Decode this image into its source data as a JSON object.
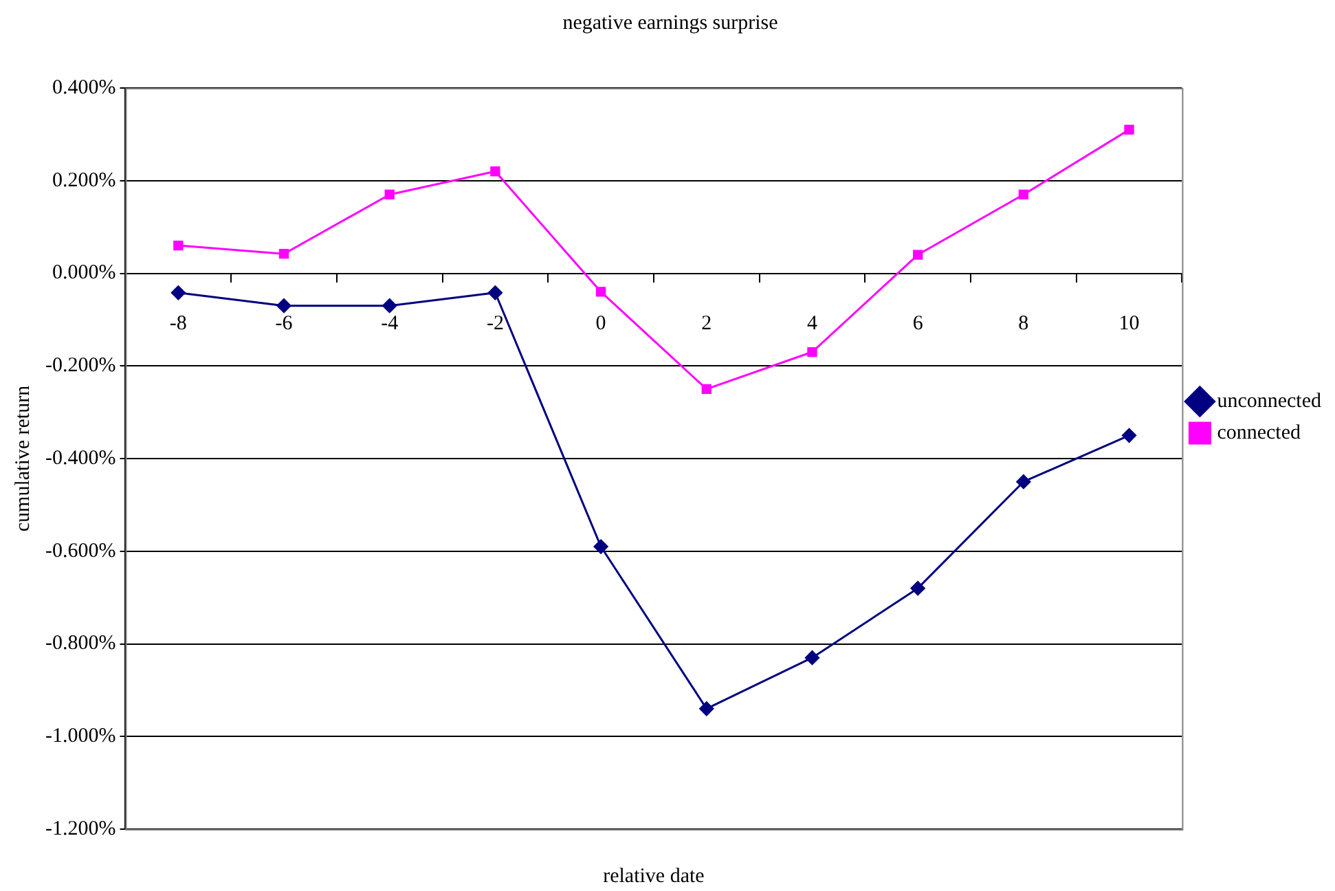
{
  "chart_data": {
    "type": "line",
    "title": "negative earnings surprise",
    "xlabel": "relative date",
    "ylabel": "cumulative return",
    "categories": [
      "-8",
      "-6",
      "-4",
      "-2",
      "0",
      "2",
      "4",
      "6",
      "8",
      "10"
    ],
    "series": [
      {
        "name": "unconnected",
        "color": "#000080",
        "marker": "diamond",
        "values": [
          -0.042,
          -0.07,
          -0.07,
          -0.042,
          -0.59,
          -0.94,
          -0.83,
          -0.68,
          -0.45,
          -0.35
        ]
      },
      {
        "name": "connected",
        "color": "#ff00ff",
        "marker": "square",
        "values": [
          0.06,
          0.042,
          0.17,
          0.22,
          -0.04,
          -0.25,
          -0.17,
          0.04,
          0.17,
          0.31
        ]
      }
    ],
    "ylim": [
      -1.2,
      0.4
    ],
    "yticks": [
      {
        "value": -1.2,
        "label": "-1.200%"
      },
      {
        "value": -1.0,
        "label": "-1.000%"
      },
      {
        "value": -0.8,
        "label": "-0.800%"
      },
      {
        "value": -0.6,
        "label": "-0.600%"
      },
      {
        "value": -0.4,
        "label": "-0.400%"
      },
      {
        "value": -0.2,
        "label": "-0.200%"
      },
      {
        "value": 0,
        "label": "0.000%"
      },
      {
        "value": 0.2,
        "label": "0.200%"
      },
      {
        "value": 0.4,
        "label": "0.400%"
      }
    ],
    "grid": "y",
    "legend": "right",
    "line_style": "solid"
  }
}
